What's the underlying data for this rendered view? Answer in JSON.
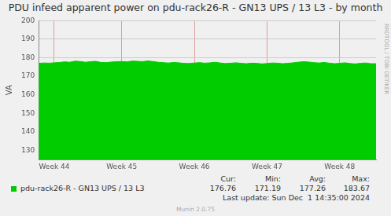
{
  "chart_data": {
    "type": "area",
    "title": "PDU infeed apparent power on pdu-rack26-R - GN13 UPS / 13 L3 - by month",
    "y_label": "VA",
    "side_text": "RRDTOOL / TOBI OETIKER",
    "categories": [
      null,
      null,
      null,
      "Week 44",
      null,
      null,
      null,
      null,
      null,
      null,
      null,
      null,
      null,
      null,
      null,
      null,
      "Week 45",
      null,
      null,
      null,
      null,
      null,
      null,
      null,
      null,
      null,
      null,
      null,
      null,
      null,
      "Week 46",
      null,
      null,
      null,
      null,
      null,
      null,
      null,
      null,
      null,
      null,
      null,
      null,
      null,
      "Week 47",
      null,
      null,
      null,
      null,
      null,
      null,
      null,
      null,
      null,
      null,
      null,
      null,
      null,
      "Week 48",
      null,
      null,
      null,
      null,
      null,
      null,
      null
    ],
    "series": [
      {
        "name": "pdu-rack26-R - GN13 UPS / 13 L3",
        "color": "#00cc00",
        "values": [
          177.0,
          177.2,
          177.1,
          177.3,
          177.5,
          177.8,
          177.6,
          178.2,
          178.0,
          177.6,
          177.9,
          178.1,
          177.5,
          177.4,
          177.7,
          177.9,
          178.0,
          177.8,
          178.2,
          178.1,
          177.9,
          178.3,
          178.0,
          177.6,
          177.4,
          177.2,
          177.5,
          177.3,
          177.0,
          176.9,
          177.2,
          177.4,
          177.1,
          177.3,
          177.6,
          177.2,
          176.9,
          177.1,
          177.3,
          177.0,
          176.8,
          177.1,
          177.0,
          176.7,
          176.9,
          177.2,
          177.1,
          176.8,
          177.0,
          177.3,
          177.6,
          177.9,
          177.7,
          177.4,
          177.2,
          177.5,
          177.1,
          176.8,
          177.0,
          177.3,
          176.9,
          176.7,
          177.0,
          177.2,
          176.8,
          176.8
        ],
        "stats": [
          {
            "label": "Cur:",
            "value": 176.76
          },
          {
            "label": "Min:",
            "value": 171.19
          },
          {
            "label": "Avg:",
            "value": 177.26
          },
          {
            "label": "Max:",
            "value": 183.67
          }
        ]
      }
    ],
    "ylim": [
      125,
      200
    ],
    "yticks": [
      130,
      140,
      150,
      160,
      170,
      180,
      190,
      200
    ],
    "grid": true,
    "last_update": "Last update: Sun Dec  1 14:35:00 2024",
    "footer": "Munin 2.0.75"
  }
}
